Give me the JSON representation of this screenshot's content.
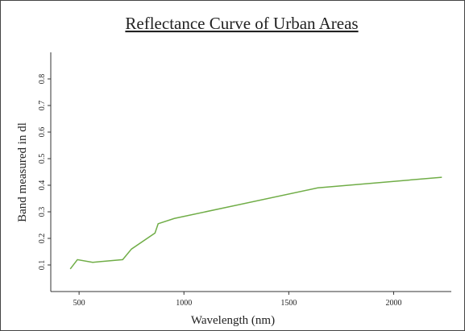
{
  "chart_data": {
    "type": "line",
    "title": "Reflectance Curve of Urban Areas",
    "xlabel": "Wavelength (nm)",
    "ylabel": "Band measured in dl",
    "x": [
      458,
      492,
      565,
      708,
      750,
      862,
      877,
      954,
      1638,
      2230
    ],
    "series": [
      {
        "name": "Urban Areas",
        "color": "#70ad47",
        "values": [
          0.085,
          0.12,
          0.11,
          0.12,
          0.16,
          0.22,
          0.255,
          0.275,
          0.39,
          0.43
        ]
      }
    ],
    "xlim": [
      365,
      2275
    ],
    "xticks": [
      500,
      1000,
      1500,
      2000
    ],
    "ylim": [
      0,
      0.9
    ],
    "yticks": [
      0.1,
      0.2,
      0.3,
      0.4,
      0.5,
      0.6,
      0.7,
      0.8
    ]
  }
}
